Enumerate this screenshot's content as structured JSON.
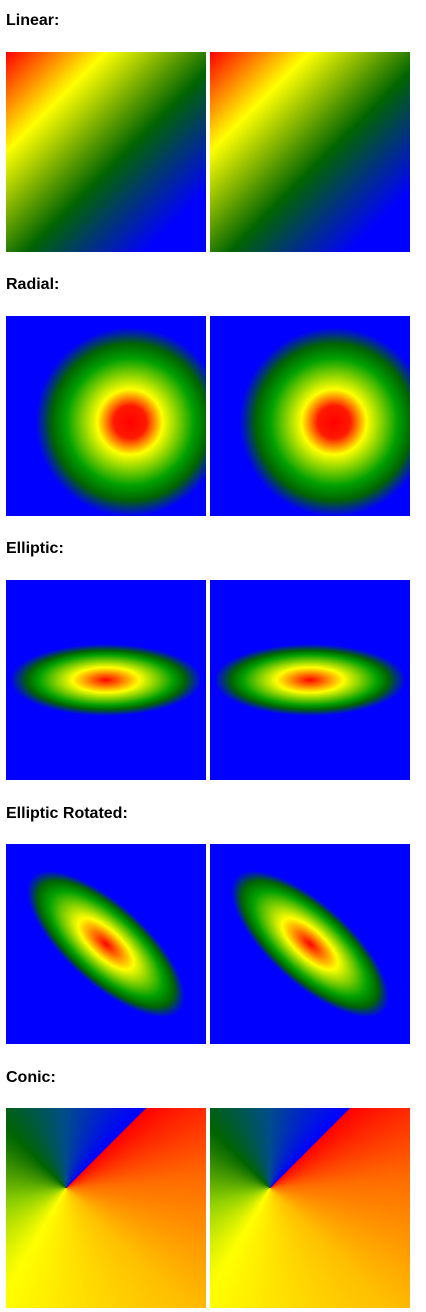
{
  "sections": [
    {
      "title": "Linear:"
    },
    {
      "title": "Radial:"
    },
    {
      "title": "Elliptic:"
    },
    {
      "title": "Elliptic Rotated:"
    },
    {
      "title": "Conic:"
    }
  ],
  "colors": {
    "red": "#ff0000",
    "yellow": "#ffff00",
    "green": "#006400",
    "blue": "#0000ff",
    "background": "#ffffff"
  }
}
